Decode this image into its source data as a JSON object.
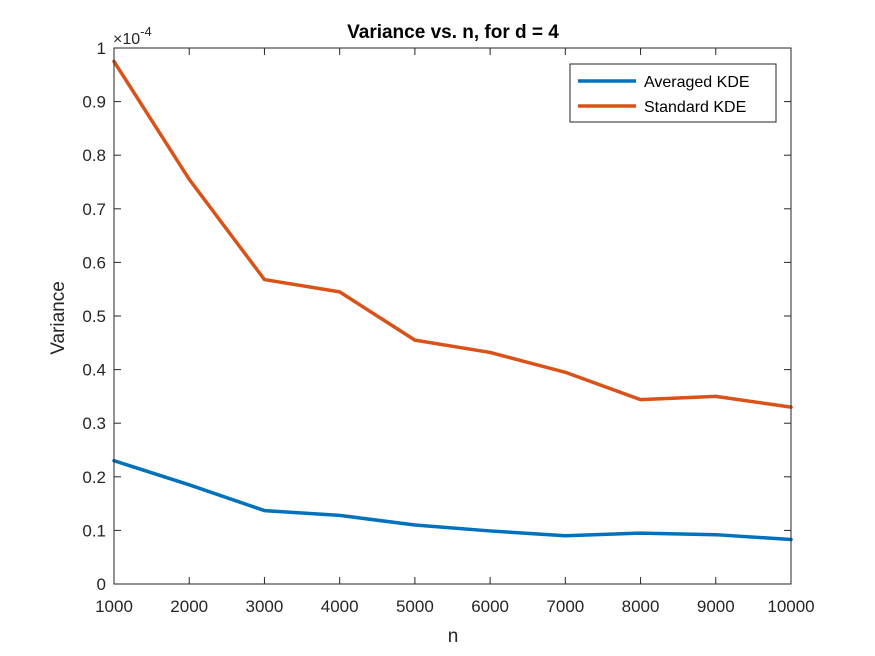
{
  "chart_data": {
    "type": "line",
    "title": "Variance vs. n, for d = 4",
    "xlabel": "n",
    "ylabel": "Variance",
    "y_exponent_label": "×10",
    "y_exponent_power": "-4",
    "xlim": [
      1000,
      10000
    ],
    "ylim": [
      0,
      1
    ],
    "x_ticks": [
      1000,
      2000,
      3000,
      4000,
      5000,
      6000,
      7000,
      8000,
      9000,
      10000
    ],
    "y_ticks": [
      0,
      0.1,
      0.2,
      0.3,
      0.4,
      0.5,
      0.6,
      0.7,
      0.8,
      0.9,
      1
    ],
    "x_tick_labels": [
      "1000",
      "2000",
      "3000",
      "4000",
      "5000",
      "6000",
      "7000",
      "8000",
      "9000",
      "10000"
    ],
    "y_tick_labels": [
      "0",
      "0.1",
      "0.2",
      "0.3",
      "0.4",
      "0.5",
      "0.6",
      "0.7",
      "0.8",
      "0.9",
      "1"
    ],
    "x": [
      1000,
      2000,
      3000,
      4000,
      5000,
      6000,
      7000,
      8000,
      9000,
      10000
    ],
    "series": [
      {
        "name": "Averaged KDE",
        "color": "#0072BD",
        "values": [
          0.23,
          0.185,
          0.137,
          0.128,
          0.11,
          0.099,
          0.09,
          0.095,
          0.092,
          0.083
        ]
      },
      {
        "name": "Standard KDE",
        "color": "#D95319",
        "values": [
          0.975,
          0.755,
          0.568,
          0.545,
          0.455,
          0.432,
          0.395,
          0.344,
          0.35,
          0.33
        ]
      }
    ],
    "legend_position": "top-right",
    "grid": false
  }
}
